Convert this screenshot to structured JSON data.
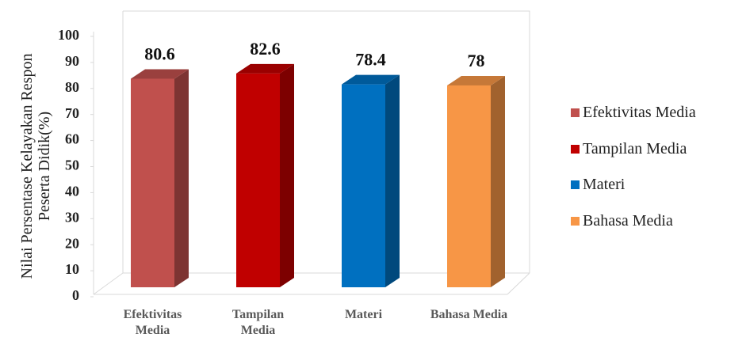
{
  "chart_data": {
    "type": "bar3d",
    "y_label": "Nilai Persentase Kelayakan Respon Peserta Didik(%)",
    "categories": [
      "Efektivitas Media",
      "Tampilan Media",
      "Materi",
      "Bahasa Media"
    ],
    "series": [
      {
        "name": "Efektivitas Media",
        "color": "#C0504D",
        "values": [
          80.6,
          null,
          null,
          null
        ]
      },
      {
        "name": "Tampilan Media",
        "color": "#C00000",
        "values": [
          null,
          82.6,
          null,
          null
        ]
      },
      {
        "name": "Materi",
        "color": "#0070C0",
        "values": [
          null,
          null,
          78.4,
          null
        ]
      },
      {
        "name": "Bahasa Media",
        "color": "#F79646",
        "values": [
          null,
          null,
          null,
          78
        ]
      }
    ],
    "ylim": [
      0,
      100
    ],
    "yticks": [
      0,
      10,
      20,
      30,
      40,
      50,
      60,
      70,
      80,
      90,
      100
    ],
    "legend": "right"
  }
}
